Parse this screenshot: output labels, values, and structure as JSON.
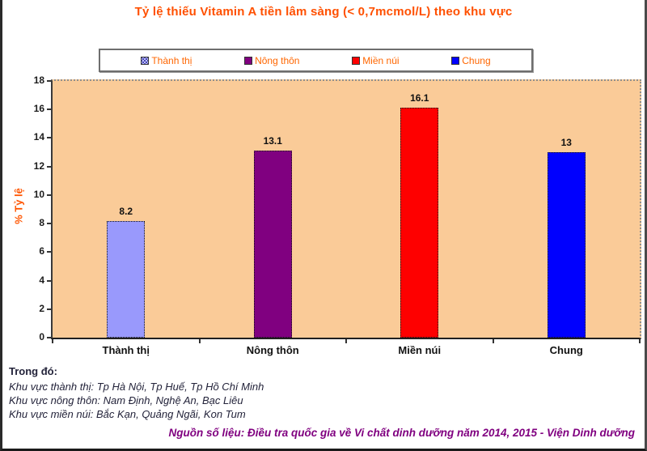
{
  "title": "Tỷ lệ thiếu Vitamin A tiền lâm sàng (< 0,7mcmol/L) theo khu vực",
  "chart_data": {
    "type": "bar",
    "categories": [
      "Thành thị",
      "Nông thôn",
      "Miền núi",
      "Chung"
    ],
    "values": [
      8.2,
      13.1,
      16.1,
      13
    ],
    "value_labels": [
      "8.2",
      "13.1",
      "16.1",
      "13"
    ],
    "bar_colors": [
      "#9999FC",
      "#800080",
      "#FE0000",
      "#0000FE"
    ],
    "legend": [
      {
        "label": "Thành thị",
        "color": "#BFBFFF",
        "pattern": true
      },
      {
        "label": "Nông thôn",
        "color": "#800080",
        "pattern": false
      },
      {
        "label": "Miền núi",
        "color": "#FE0000",
        "pattern": false
      },
      {
        "label": "Chung",
        "color": "#0000FE",
        "pattern": false
      }
    ],
    "legend_position": "top",
    "ylabel": "% Tỷ lệ",
    "ylim": [
      0,
      18
    ],
    "yticks": [
      0,
      2,
      4,
      6,
      8,
      10,
      12,
      14,
      16,
      18
    ],
    "grid": false,
    "plot_bg": "#FACB98"
  },
  "footnote": {
    "heading": "Trong đó:",
    "lines": [
      "Khu vực thành thị: Tp Hà Nội, Tp Huế, Tp Hồ Chí Minh",
      "Khu vực nông thôn: Nam Định, Nghệ An, Bạc Liêu",
      "Khu vực miền núi: Bắc Kạn, Quảng Ngãi, Kon Tum"
    ]
  },
  "source": "Nguồn số liệu: Điều tra quốc gia về Vi chất dinh dưỡng năm 2014, 2015 - Viện Dinh dưỡng",
  "colors": {
    "title": "#FF5000",
    "legend_text": "#FF6600",
    "y_axis_title": "#FF5500",
    "footnote_text": "#23233a",
    "source_text": "#800080"
  }
}
